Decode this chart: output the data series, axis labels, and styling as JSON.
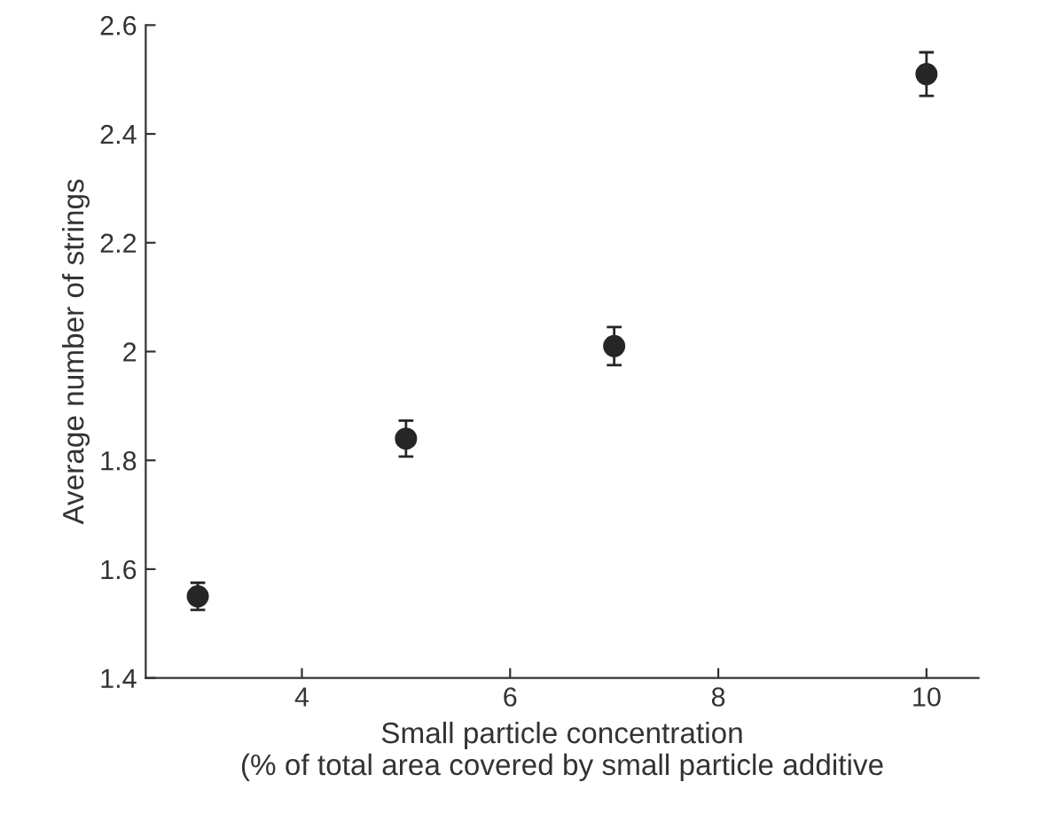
{
  "chart_data": {
    "type": "scatter",
    "xlabel": "Small particle concentration\n(% of total area covered by small particle additive",
    "ylabel": "Average number of strings",
    "series": [
      {
        "color": "#262626",
        "x": [
          3,
          5,
          7,
          10
        ],
        "values": [
          1.55,
          1.84,
          2.01,
          2.51
        ],
        "errors": [
          0.025,
          0.033,
          0.035,
          0.04
        ]
      }
    ],
    "xlim": [
      2.5,
      10.5
    ],
    "xticks": [
      4,
      6,
      8,
      10
    ],
    "ylim": [
      1.4,
      2.6
    ],
    "yticks": [
      1.4,
      1.6,
      1.8,
      2,
      2.2,
      2.4,
      2.6
    ],
    "marker": "circle",
    "grid": false,
    "legend": false
  }
}
